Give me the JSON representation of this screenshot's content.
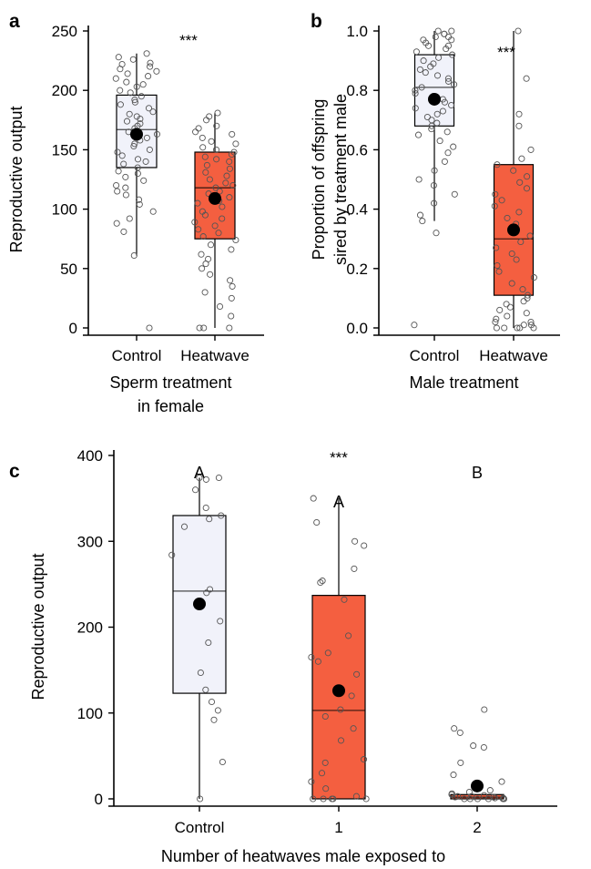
{
  "colors": {
    "control_fill": "#f1f2fa",
    "heatwave_fill": "#f45f40",
    "point_edge": "#555555",
    "mean": "#000000"
  },
  "chart_data": [
    {
      "panel": "a",
      "type": "box",
      "categories": [
        "Control",
        "Heatwave"
      ],
      "xlabel": [
        "Sperm treatment",
        "in female"
      ],
      "ylabel": "Reproductive output",
      "ylim": [
        0,
        250
      ],
      "yticks": [
        0,
        50,
        100,
        150,
        200,
        250
      ],
      "significance": "***",
      "groups": [
        {
          "name": "Control",
          "q1": 135,
          "median": 167,
          "q3": 196,
          "whisker_low": 61,
          "whisker_high": 231,
          "mean": 163,
          "points": [
            231,
            228,
            226,
            223,
            222,
            220,
            218,
            216,
            214,
            212,
            210,
            207,
            205,
            203,
            200,
            198,
            195,
            192,
            190,
            188,
            185,
            182,
            180,
            178,
            176,
            174,
            172,
            170,
            168,
            165,
            163,
            160,
            158,
            155,
            153,
            150,
            148,
            145,
            142,
            140,
            138,
            135,
            132,
            130,
            127,
            124,
            120,
            118,
            115,
            112,
            108,
            104,
            98,
            92,
            88,
            81,
            61,
            0
          ]
        },
        {
          "name": "Heatwave",
          "q1": 75,
          "median": 118,
          "q3": 148,
          "whisker_low": 0,
          "whisker_high": 181,
          "mean": 109,
          "points": [
            181,
            178,
            175,
            170,
            168,
            165,
            163,
            160,
            157,
            155,
            152,
            150,
            148,
            146,
            144,
            142,
            140,
            137,
            134,
            131,
            128,
            125,
            122,
            120,
            118,
            115,
            113,
            110,
            107,
            105,
            102,
            98,
            95,
            92,
            89,
            86,
            83,
            80,
            77,
            74,
            70,
            66,
            62,
            58,
            54,
            50,
            45,
            40,
            35,
            30,
            25,
            18,
            10,
            0,
            0,
            0
          ]
        }
      ]
    },
    {
      "panel": "b",
      "type": "box",
      "categories": [
        "Control",
        "Heatwave"
      ],
      "xlabel": [
        "Male treatment"
      ],
      "ylabel": [
        "Proportion of offspring",
        "sired by treatment male"
      ],
      "ylim": [
        0,
        1
      ],
      "yticks": [
        "0.0",
        "0.2",
        "0.4",
        "0.6",
        "0.8",
        "1.0"
      ],
      "significance": "***",
      "groups": [
        {
          "name": "Control",
          "q1": 0.68,
          "median": 0.81,
          "q3": 0.92,
          "whisker_low": 0.36,
          "whisker_high": 1.0,
          "mean": 0.77,
          "points": [
            1.0,
            1.0,
            0.99,
            0.99,
            0.98,
            0.98,
            0.97,
            0.97,
            0.96,
            0.95,
            0.95,
            0.94,
            0.93,
            0.92,
            0.91,
            0.9,
            0.89,
            0.88,
            0.87,
            0.86,
            0.85,
            0.84,
            0.83,
            0.82,
            0.81,
            0.8,
            0.79,
            0.78,
            0.77,
            0.76,
            0.75,
            0.74,
            0.73,
            0.72,
            0.71,
            0.7,
            0.69,
            0.68,
            0.67,
            0.66,
            0.65,
            0.63,
            0.61,
            0.59,
            0.56,
            0.53,
            0.5,
            0.48,
            0.45,
            0.42,
            0.38,
            0.36,
            0.32,
            0.01
          ]
        },
        {
          "name": "Heatwave",
          "q1": 0.11,
          "median": 0.3,
          "q3": 0.55,
          "whisker_low": 0.0,
          "whisker_high": 1.0,
          "mean": 0.33,
          "points": [
            1.0,
            0.84,
            0.72,
            0.68,
            0.6,
            0.57,
            0.55,
            0.53,
            0.51,
            0.49,
            0.47,
            0.45,
            0.43,
            0.41,
            0.39,
            0.37,
            0.35,
            0.33,
            0.31,
            0.29,
            0.27,
            0.25,
            0.23,
            0.21,
            0.19,
            0.17,
            0.15,
            0.13,
            0.11,
            0.1,
            0.09,
            0.08,
            0.07,
            0.06,
            0.05,
            0.04,
            0.03,
            0.02,
            0.02,
            0.01,
            0.01,
            0.0,
            0.0,
            0.0,
            0.0,
            0.0
          ]
        }
      ]
    },
    {
      "panel": "c",
      "type": "box",
      "categories": [
        "Control",
        "1",
        "2"
      ],
      "xlabel": [
        "Number of heatwaves male exposed to"
      ],
      "ylabel": "Reproductive output",
      "ylim": [
        0,
        400
      ],
      "yticks": [
        0,
        100,
        200,
        300,
        400
      ],
      "significance": "***",
      "group_letters": [
        "A",
        "A",
        "B"
      ],
      "groups": [
        {
          "name": "Control",
          "q1": 123,
          "median": 242,
          "q3": 330,
          "whisker_low": 0,
          "whisker_high": 374,
          "mean": 227,
          "points": [
            374,
            374,
            372,
            360,
            339,
            330,
            326,
            317,
            284,
            244,
            240,
            207,
            182,
            147,
            127,
            113,
            103,
            92,
            43,
            0
          ]
        },
        {
          "name": "1",
          "q1": 0,
          "median": 103,
          "q3": 237,
          "whisker_low": 0,
          "whisker_high": 350,
          "mean": 126,
          "points": [
            350,
            322,
            300,
            295,
            268,
            254,
            252,
            232,
            190,
            170,
            165,
            160,
            145,
            120,
            104,
            96,
            82,
            68,
            46,
            42,
            30,
            20,
            12,
            3,
            0,
            0,
            0,
            0,
            0
          ]
        },
        {
          "name": "2",
          "q1": 0,
          "median": 2,
          "q3": 5,
          "whisker_low": 0,
          "whisker_high": 5,
          "mean": 15,
          "points": [
            104,
            82,
            77,
            62,
            60,
            42,
            28,
            20,
            10,
            8,
            6,
            5,
            4,
            3,
            3,
            2,
            2,
            1,
            1,
            0,
            0,
            0,
            0,
            0,
            0
          ]
        }
      ]
    }
  ]
}
